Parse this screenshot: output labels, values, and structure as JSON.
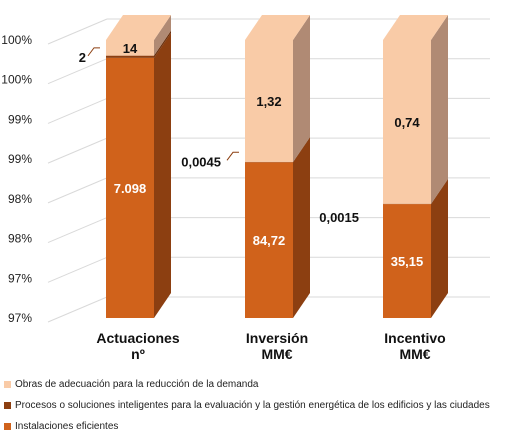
{
  "chart_data": {
    "type": "bar",
    "stacked": true,
    "percent_stacked": true,
    "three_d": true,
    "categories": [
      "Actuaciones nº",
      "Inversión MM€",
      "Incentivo MM€"
    ],
    "category_lines": [
      [
        "Actuaciones",
        "nº"
      ],
      [
        "Inversión",
        "MM€"
      ],
      [
        "Incentivo",
        "MM€"
      ]
    ],
    "y_tick_labels": [
      "97%",
      "97%",
      "98%",
      "98%",
      "99%",
      "99%",
      "100%",
      "100%"
    ],
    "y_axis_visual_range_fraction": [
      0.965,
      1.0
    ],
    "gridlines": true,
    "legend_position": "bottom",
    "series": [
      {
        "name": "Instalaciones eficientes",
        "values": [
          7098,
          84.72,
          35.15
        ],
        "labels": [
          "7.098",
          "84,72",
          "35,15"
        ],
        "color": "#d0621b",
        "side_color": "#8c3f11"
      },
      {
        "name": "Procesos o soluciones inteligentes para la evaluación y la gestión energética de los edificios y las ciudades",
        "values": [
          2,
          0.0045,
          0.0015
        ],
        "labels": [
          "2",
          "0,0045",
          "0,0015"
        ],
        "color": "#8c3f11",
        "side_color": "#6a2f0c"
      },
      {
        "name": "Obras de adecuación para la reducción de la demanda",
        "values": [
          14,
          1.32,
          0.74
        ],
        "labels": [
          "14",
          "1,32",
          "0,74"
        ],
        "color": "#f9cba7",
        "side_color": "#b08a74"
      }
    ]
  },
  "legend_order": [
    2,
    1,
    0
  ]
}
